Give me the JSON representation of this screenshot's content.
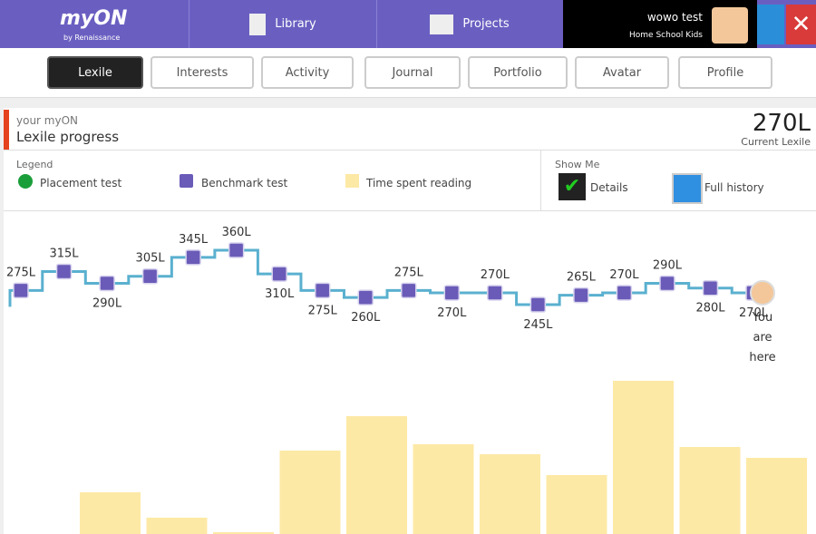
{
  "nav": {
    "logo": "myON",
    "logo_sub": "by Renaissance",
    "links": [
      "Library",
      "Projects"
    ],
    "user": "wowo test",
    "group": "Home School Kids"
  },
  "tabs": [
    "Lexile",
    "Interests",
    "Activity",
    "Journal",
    "Portfolio",
    "Avatar",
    "Profile"
  ],
  "header": {
    "kicker": "your myON",
    "title": "Lexile progress",
    "current": "270L",
    "current_label": "Current Lexile"
  },
  "legend": {
    "title": "Legend",
    "placement": {
      "name": "Placement test",
      "color": "#1a9e3a"
    }
  },
  "show_me": {
    "title": "Show Me",
    "options": [
      "Details",
      "Full history"
    ]
  },
  "chart_data": {
    "type": "line",
    "series": [
      {
        "name": "Benchmark test",
        "color": "#6a5bb8",
        "line_color": "#5ab0cf",
        "values": [
          275,
          315,
          290,
          305,
          345,
          360,
          310,
          275,
          260,
          275,
          270,
          270,
          245,
          265,
          270,
          290,
          280,
          270
        ],
        "value_labels": [
          "275L",
          "315L",
          "290L",
          "305L",
          "345L",
          "360L",
          "310L",
          "275L",
          "260L",
          "275L",
          "270L",
          "270L",
          "245L",
          "265L",
          "270L",
          "290L",
          "280L",
          "270L"
        ]
      },
      {
        "name": "Time spent reading",
        "type": "bar",
        "color": "#fde9a6",
        "values": [
          46,
          18,
          2,
          92,
          130,
          99,
          88,
          65,
          169,
          96,
          84
        ]
      }
    ],
    "annotation": "You are here"
  }
}
